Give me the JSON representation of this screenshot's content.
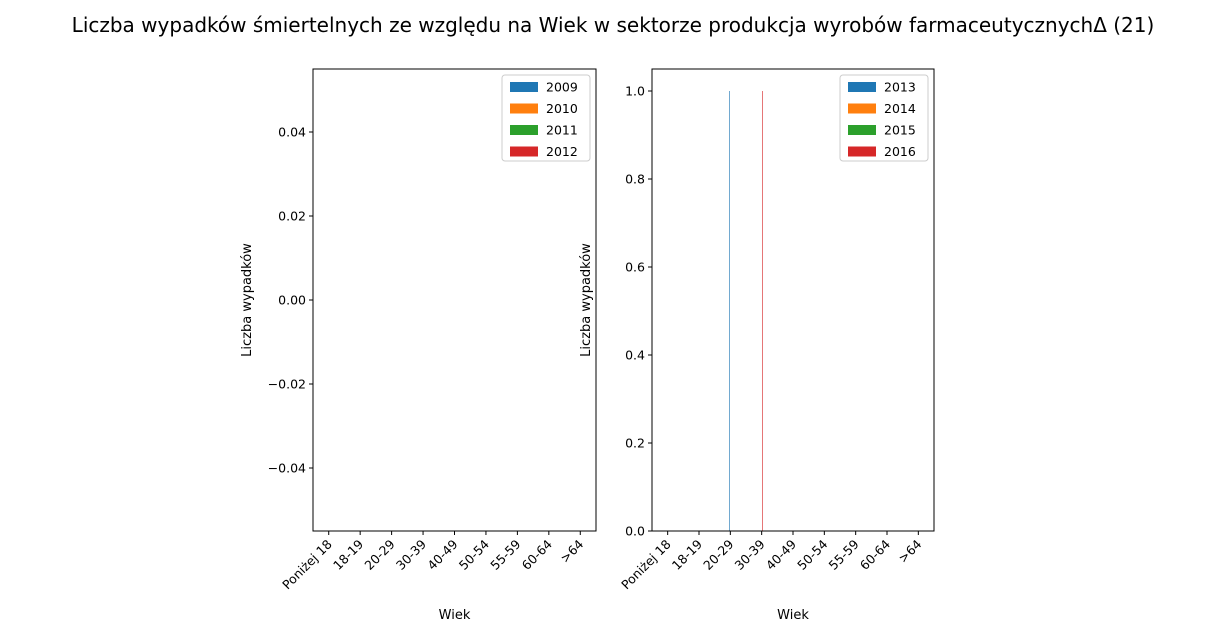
{
  "title": "Liczba wypadków śmiertelnych ze względu na Wiek w sektorze produkcja wyrobów farmaceutycznychΔ (21)",
  "colors": {
    "series": [
      "#1f77b4",
      "#ff7f0e",
      "#2ca02c",
      "#d62728"
    ]
  },
  "chart_data": [
    {
      "type": "bar",
      "xlabel": "Wiek",
      "ylabel": "Liczba wypadków",
      "ylim": [
        -0.055,
        0.055
      ],
      "yticks": [
        "0.04",
        "0.02",
        "0.00",
        "−0.02",
        "−0.04"
      ],
      "categories": [
        "Poniżej 18",
        "18-19",
        "20-29",
        "30-39",
        "40-49",
        "50-54",
        "55-59",
        "60-64",
        ">64"
      ],
      "legend_position": "top-right",
      "series": [
        {
          "name": "2009",
          "values": [
            0,
            0,
            0,
            0,
            0,
            0,
            0,
            0,
            0
          ]
        },
        {
          "name": "2010",
          "values": [
            0,
            0,
            0,
            0,
            0,
            0,
            0,
            0,
            0
          ]
        },
        {
          "name": "2011",
          "values": [
            0,
            0,
            0,
            0,
            0,
            0,
            0,
            0,
            0
          ]
        },
        {
          "name": "2012",
          "values": [
            0,
            0,
            0,
            0,
            0,
            0,
            0,
            0,
            0
          ]
        }
      ]
    },
    {
      "type": "bar",
      "xlabel": "Wiek",
      "ylabel": "Liczba wypadków",
      "ylim": [
        0,
        1.05
      ],
      "yticks": [
        "1.0",
        "0.8",
        "0.6",
        "0.4",
        "0.2",
        "0.0"
      ],
      "categories": [
        "Poniżej 18",
        "18-19",
        "20-29",
        "30-39",
        "40-49",
        "50-54",
        "55-59",
        "60-64",
        ">64"
      ],
      "legend_position": "top-right",
      "series": [
        {
          "name": "2013",
          "values": [
            0,
            0,
            1,
            0,
            0,
            0,
            0,
            0,
            0
          ]
        },
        {
          "name": "2014",
          "values": [
            0,
            0,
            0,
            0,
            0,
            0,
            0,
            0,
            0
          ]
        },
        {
          "name": "2015",
          "values": [
            0,
            0,
            0,
            0,
            0,
            0,
            0,
            0,
            0
          ]
        },
        {
          "name": "2016",
          "values": [
            0,
            0,
            0,
            1,
            0,
            0,
            0,
            0,
            0
          ]
        }
      ]
    }
  ]
}
